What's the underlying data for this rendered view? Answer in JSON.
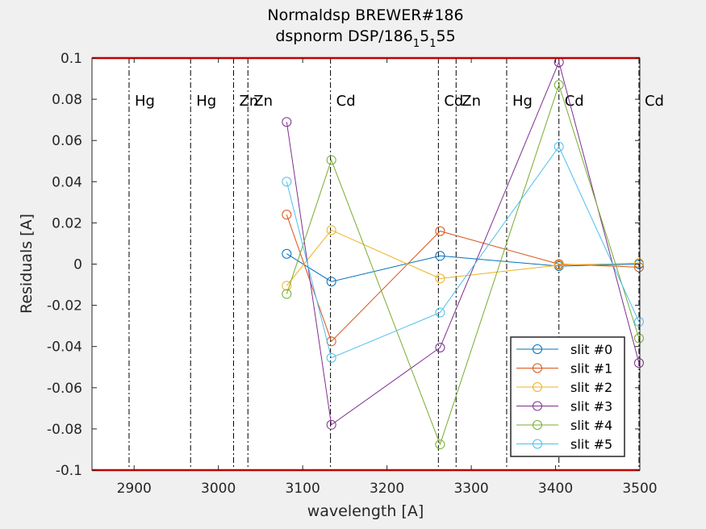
{
  "chart_data": {
    "type": "line",
    "title": "Normaldsp BREWER#186",
    "subtitle_parts": [
      "dspnorm DSP/186",
      "1",
      "5",
      "1",
      "55"
    ],
    "xlabel": "wavelength [A]",
    "ylabel": "Residuals [A]",
    "xlim": [
      2850,
      3500
    ],
    "ylim": [
      -0.1,
      0.1
    ],
    "xticks": [
      2900,
      3000,
      3100,
      3200,
      3300,
      3400,
      3500
    ],
    "xtick_labels": [
      "2900",
      "3000",
      "3100",
      "3200",
      "3300",
      "3400",
      "3500"
    ],
    "yticks": [
      -0.1,
      -0.08,
      -0.06,
      -0.04,
      -0.02,
      0,
      0.02,
      0.04,
      0.06,
      0.08,
      0.1
    ],
    "ytick_labels": [
      "-0.1",
      "-0.08",
      "-0.06",
      "-0.04",
      "-0.02",
      "0",
      "0.02",
      "0.04",
      "0.06",
      "0.08",
      "0.1"
    ],
    "grid": false,
    "legend_position": "bottom-right",
    "limit_line_color": "#c00000",
    "reference_lines": [
      {
        "x": 2894,
        "label": "Hg"
      },
      {
        "x": 2967,
        "label": "Hg"
      },
      {
        "x": 3018,
        "label": "Zn"
      },
      {
        "x": 3035,
        "label": "Zn"
      },
      {
        "x": 3133,
        "label": "Cd"
      },
      {
        "x": 3261,
        "label": "Cd"
      },
      {
        "x": 3282,
        "label": "Zn"
      },
      {
        "x": 3342,
        "label": "Hg"
      },
      {
        "x": 3404,
        "label": "Cd"
      },
      {
        "x": 3499,
        "label": "Cd"
      }
    ],
    "x": [
      3081,
      3134,
      3263,
      3404,
      3499
    ],
    "series": [
      {
        "name": "slit #0",
        "color": "#0072bd",
        "values": [
          0.005,
          -0.0085,
          0.004,
          -0.001,
          0.0
        ]
      },
      {
        "name": "slit #1",
        "color": "#d95319",
        "values": [
          0.024,
          -0.0375,
          0.016,
          0.0,
          -0.0015
        ]
      },
      {
        "name": "slit #2",
        "color": "#edb120",
        "values": [
          -0.0105,
          0.0165,
          -0.007,
          -0.0005,
          0.0005
        ]
      },
      {
        "name": "slit #3",
        "color": "#7e2f8e",
        "values": [
          0.069,
          -0.078,
          -0.0405,
          0.098,
          -0.048
        ]
      },
      {
        "name": "slit #4",
        "color": "#77ac30",
        "values": [
          -0.0145,
          0.0505,
          -0.0875,
          0.087,
          -0.036
        ]
      },
      {
        "name": "slit #5",
        "color": "#4dbeee",
        "values": [
          0.04,
          -0.0455,
          -0.0235,
          0.057,
          -0.028
        ]
      }
    ]
  }
}
